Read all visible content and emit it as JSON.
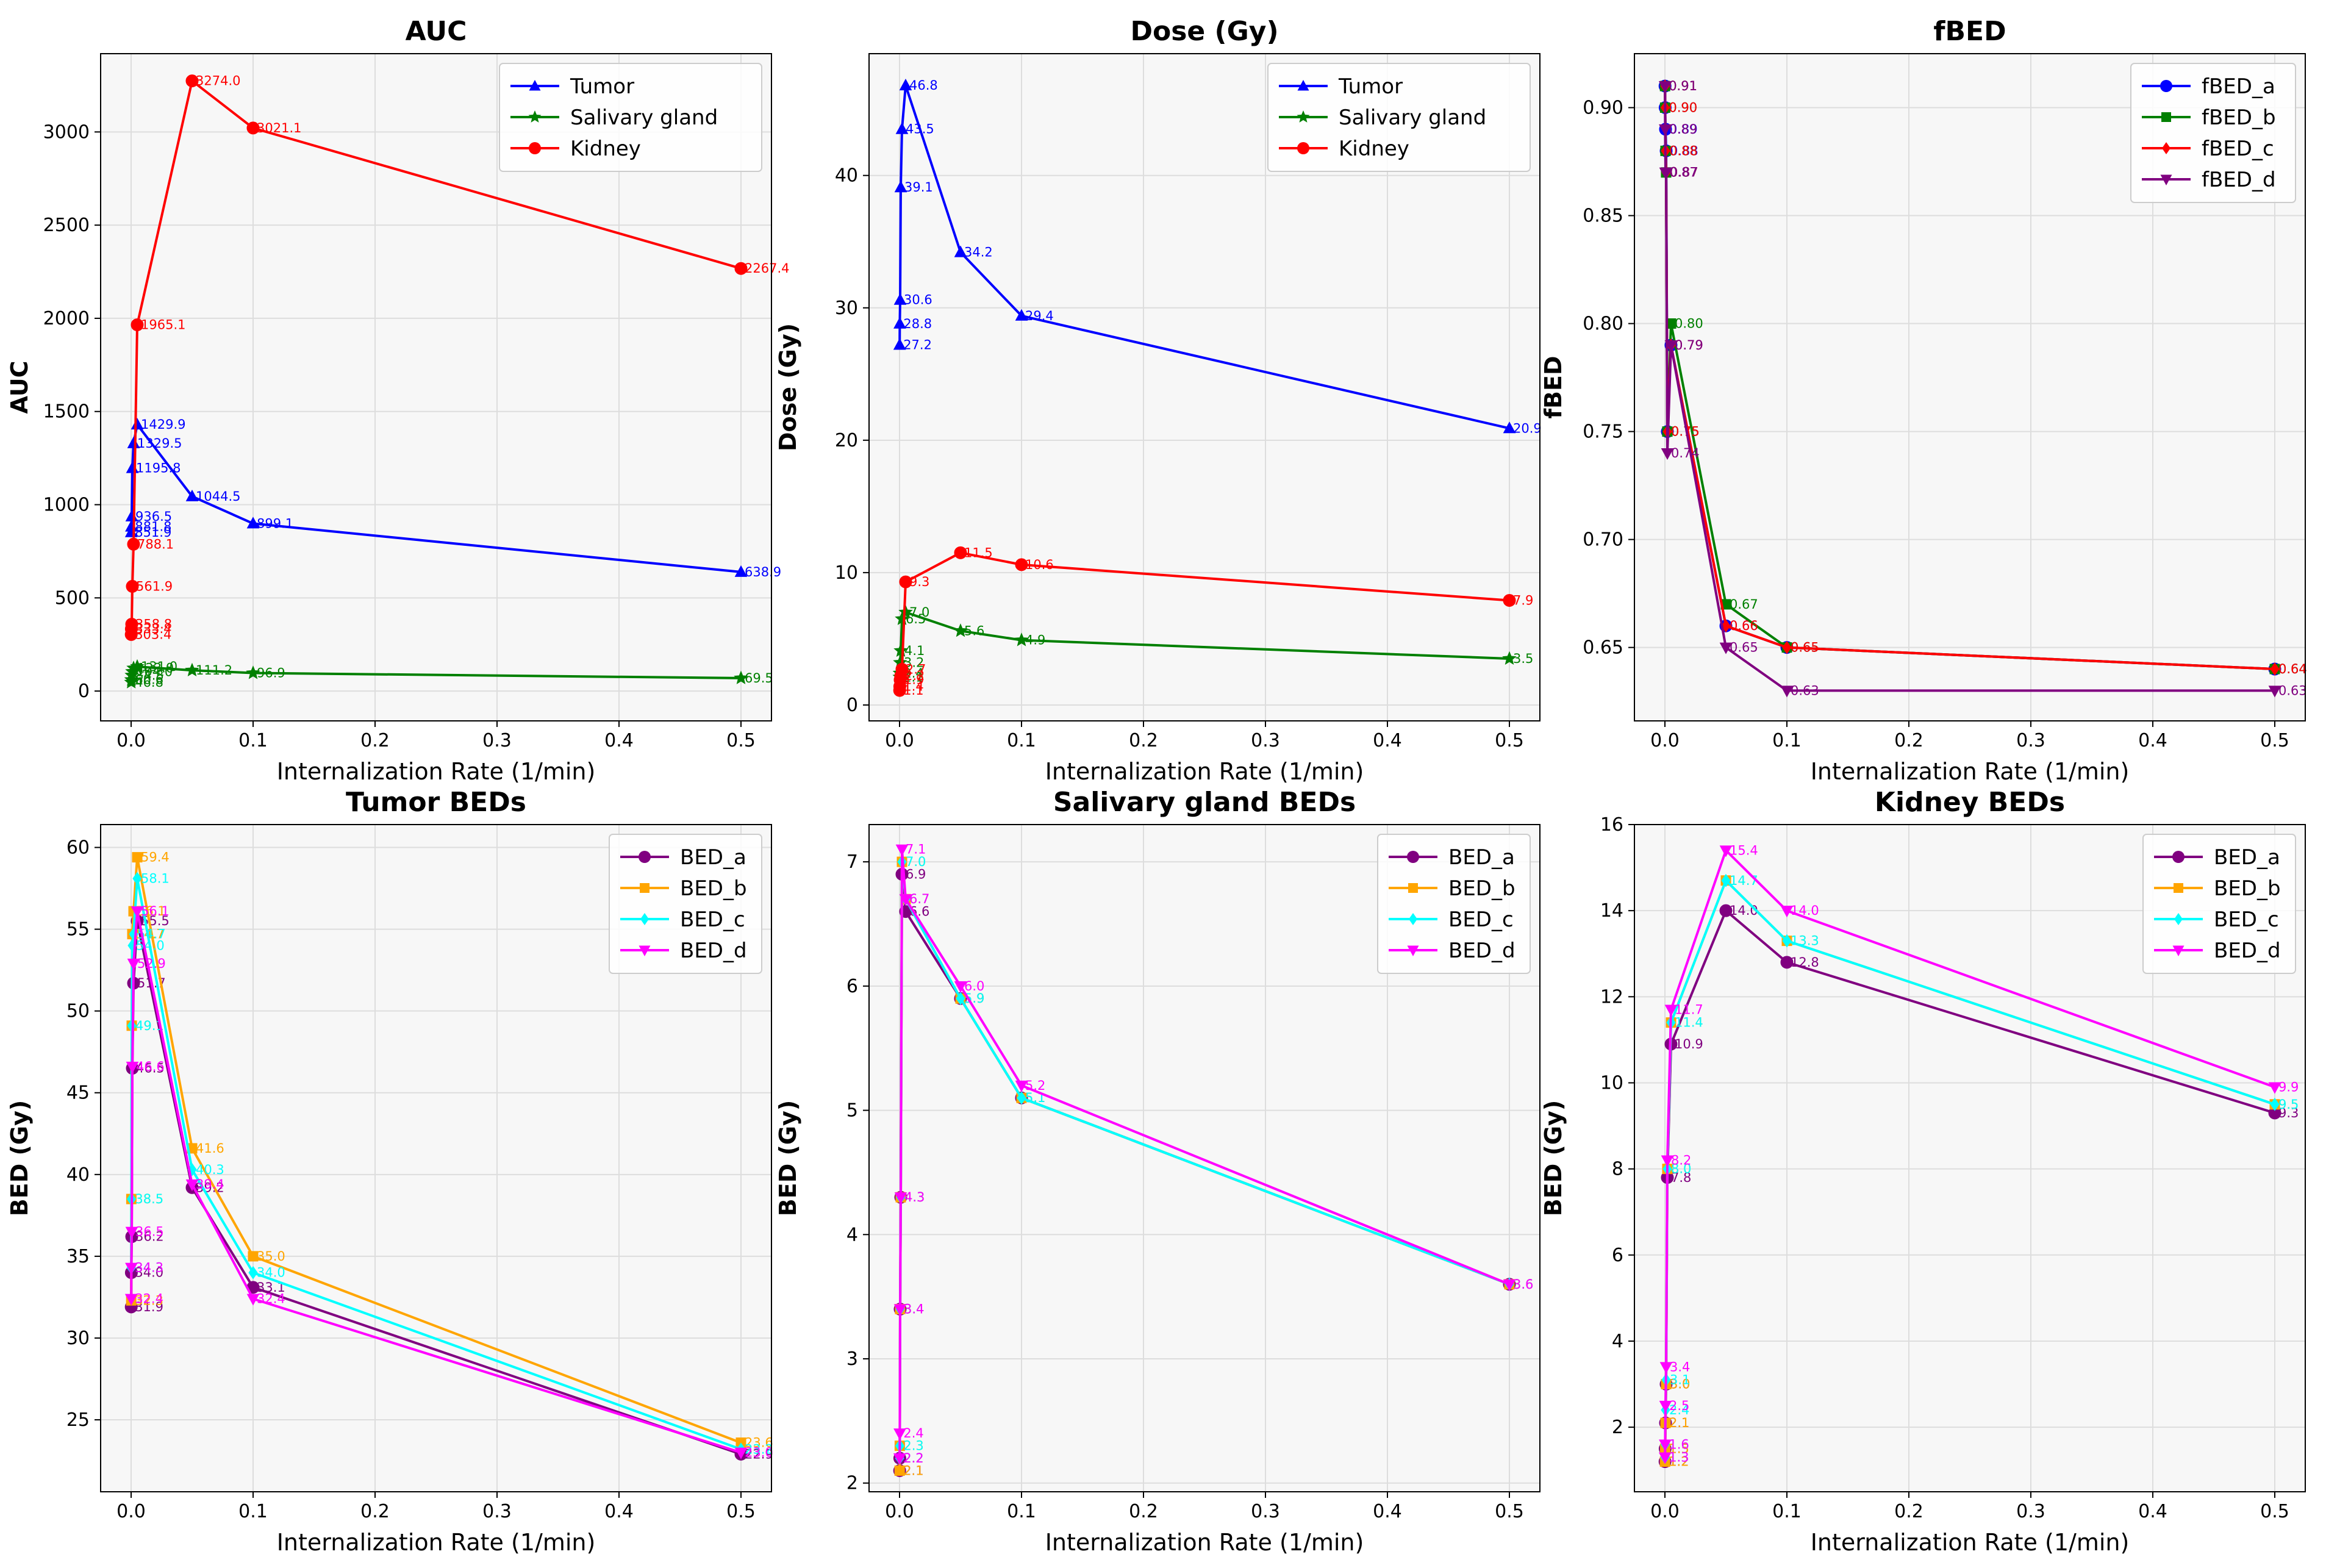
{
  "chart_data": [
    {
      "type": "line",
      "title": "AUC",
      "xlabel": "Internalization Rate (1/min)",
      "ylabel": "AUC",
      "xlim": [
        -0.025,
        0.525
      ],
      "ylim": [
        -160,
        3420
      ],
      "xticks": [
        0.0,
        0.1,
        0.2,
        0.3,
        0.4,
        0.5
      ],
      "xtick_labels": [
        "0.0",
        "0.1",
        "0.2",
        "0.3",
        "0.4",
        "0.5"
      ],
      "yticks": [
        0,
        500,
        1000,
        1500,
        2000,
        2500,
        3000
      ],
      "ytick_labels": [
        "0",
        "500",
        "1000",
        "1500",
        "2000",
        "2500",
        "3000"
      ],
      "grid": true,
      "legend_position": "top-right",
      "x": [
        0.0001,
        0.0002,
        0.0005,
        0.001,
        0.002,
        0.005,
        0.05,
        0.1,
        0.5
      ],
      "series": [
        {
          "name": "Tumor",
          "color": "#0000ff",
          "marker": "triangle-up",
          "values": [
            851.9,
            881.8,
            936.5,
            1195.8,
            1329.5,
            1429.9,
            1044.5,
            899.1,
            638.9
          ],
          "labels": [
            "851.9",
            "881.8",
            "936.5",
            "1195.8",
            "1329.5",
            "1429.9",
            "1044.5",
            "899.1",
            "638.9"
          ]
        },
        {
          "name": "Salivary gland",
          "color": "#008000",
          "marker": "star",
          "values": [
            46.8,
            60.6,
            84.3,
            104.0,
            123.0,
            131.0,
            111.2,
            96.9,
            69.5
          ],
          "labels": [
            "46.8",
            "60.6",
            "84.3",
            "104.0",
            "123.0",
            "131.0",
            "111.2",
            "96.9",
            "69.5"
          ]
        },
        {
          "name": "Kidney",
          "color": "#ff0000",
          "marker": "circle",
          "values": [
            303.4,
            333.4,
            358.8,
            561.9,
            788.1,
            1965.1,
            3274.0,
            3021.1,
            2267.4
          ],
          "labels": [
            "303.4",
            "333.4",
            "358.8",
            "561.9",
            "788.1",
            "1965.1",
            "3274.0",
            "3021.1",
            "2267.4"
          ]
        }
      ]
    },
    {
      "type": "line",
      "title": "Dose (Gy)",
      "xlabel": "Internalization Rate (1/min)",
      "ylabel": "Dose (Gy)",
      "xlim": [
        -0.025,
        0.525
      ],
      "ylim": [
        -1.2,
        49.2
      ],
      "xticks": [
        0.0,
        0.1,
        0.2,
        0.3,
        0.4,
        0.5
      ],
      "xtick_labels": [
        "0.0",
        "0.1",
        "0.2",
        "0.3",
        "0.4",
        "0.5"
      ],
      "yticks": [
        0,
        10,
        20,
        30,
        40
      ],
      "ytick_labels": [
        "0",
        "10",
        "20",
        "30",
        "40"
      ],
      "grid": true,
      "legend_position": "top-right",
      "x": [
        0.0001,
        0.0002,
        0.0005,
        0.001,
        0.002,
        0.005,
        0.05,
        0.1,
        0.5
      ],
      "series": [
        {
          "name": "Tumor",
          "color": "#0000ff",
          "marker": "triangle-up",
          "values": [
            27.2,
            28.8,
            30.6,
            39.1,
            43.5,
            46.8,
            34.2,
            29.4,
            20.9
          ],
          "labels": [
            "27.2",
            "28.8",
            "30.6",
            "39.1",
            "43.5",
            "46.8",
            "34.2",
            "29.4",
            "20.9"
          ]
        },
        {
          "name": "Salivary gland",
          "color": "#008000",
          "marker": "star",
          "values": [
            2.1,
            2.4,
            3.2,
            4.1,
            6.5,
            7.0,
            5.6,
            4.9,
            3.5
          ],
          "labels": [
            "2.1",
            "2.4",
            "3.2",
            "4.1",
            "6.5",
            "7.0",
            "5.6",
            "4.9",
            "3.5"
          ]
        },
        {
          "name": "Kidney",
          "color": "#ff0000",
          "marker": "circle",
          "values": [
            1.1,
            1.4,
            1.9,
            2.2,
            2.7,
            9.3,
            11.5,
            10.6,
            7.9
          ],
          "labels": [
            "1.1",
            "1.4",
            "1.9",
            "2.2",
            "2.7",
            "9.3",
            "11.5",
            "10.6",
            "7.9"
          ]
        }
      ]
    },
    {
      "type": "line",
      "title": "fBED",
      "xlabel": "Internalization Rate (1/min)",
      "ylabel": "fBED",
      "xlim": [
        -0.025,
        0.525
      ],
      "ylim": [
        0.616,
        0.925
      ],
      "xticks": [
        0.0,
        0.1,
        0.2,
        0.3,
        0.4,
        0.5
      ],
      "xtick_labels": [
        "0.0",
        "0.1",
        "0.2",
        "0.3",
        "0.4",
        "0.5"
      ],
      "yticks": [
        0.65,
        0.7,
        0.75,
        0.8,
        0.85,
        0.9
      ],
      "ytick_labels": [
        "0.65",
        "0.70",
        "0.75",
        "0.80",
        "0.85",
        "0.90"
      ],
      "grid": true,
      "legend_position": "top-right",
      "x": [
        0.0001,
        0.0002,
        0.0005,
        0.001,
        0.002,
        0.005,
        0.05,
        0.1,
        0.5
      ],
      "series": [
        {
          "name": "fBED_a",
          "color": "#0000ff",
          "marker": "circle",
          "values": [
            0.91,
            0.9,
            0.89,
            0.88,
            0.75,
            0.79,
            0.66,
            0.65,
            0.64
          ],
          "labels": [
            "0.91",
            "0.90",
            "0.89",
            "0.88",
            "0.75",
            "0.79",
            "0.66",
            "0.65",
            "0.64"
          ]
        },
        {
          "name": "fBED_b",
          "color": "#008000",
          "marker": "square",
          "values": [
            0.91,
            0.9,
            0.88,
            0.87,
            0.75,
            0.8,
            0.67,
            0.65,
            0.64
          ],
          "labels": [
            "0.91",
            "0.90",
            "0.88",
            "0.87",
            "0.75",
            "0.80",
            "0.67",
            "0.65",
            "0.64"
          ]
        },
        {
          "name": "fBED_c",
          "color": "#ff0000",
          "marker": "diamond",
          "values": [
            0.91,
            0.9,
            0.88,
            0.87,
            0.75,
            0.79,
            0.66,
            0.65,
            0.64
          ],
          "labels": [
            "0.91",
            "0.90",
            "0.88",
            "0.87",
            "0.75",
            "0.79",
            "0.66",
            "0.65",
            "0.64"
          ]
        },
        {
          "name": "fBED_d",
          "color": "#800080",
          "marker": "triangle-down",
          "values": [
            0.91,
            0.89,
            0.87,
            0.87,
            0.74,
            0.79,
            0.65,
            0.63,
            0.63
          ],
          "labels": [
            "0.91",
            "0.89",
            "0.87",
            "0.87",
            "0.74",
            "0.79",
            "0.65",
            "0.63",
            "0.63"
          ]
        }
      ]
    },
    {
      "type": "line",
      "title": "Tumor BEDs",
      "xlabel": "Internalization Rate (1/min)",
      "ylabel": "BED (Gy)",
      "xlim": [
        -0.025,
        0.525
      ],
      "ylim": [
        20.6,
        61.4
      ],
      "xticks": [
        0.0,
        0.1,
        0.2,
        0.3,
        0.4,
        0.5
      ],
      "xtick_labels": [
        "0.0",
        "0.1",
        "0.2",
        "0.3",
        "0.4",
        "0.5"
      ],
      "yticks": [
        25,
        30,
        35,
        40,
        45,
        50,
        55,
        60
      ],
      "ytick_labels": [
        "25",
        "30",
        "35",
        "40",
        "45",
        "50",
        "55",
        "60"
      ],
      "grid": true,
      "legend_position": "top-right",
      "x": [
        0.0001,
        0.0002,
        0.0005,
        0.001,
        0.002,
        0.005,
        0.05,
        0.1,
        0.5
      ],
      "series": [
        {
          "name": "BED_a",
          "color": "#800080",
          "marker": "circle",
          "values": [
            31.9,
            34.0,
            36.2,
            46.5,
            51.7,
            55.5,
            39.2,
            33.1,
            22.9
          ],
          "labels": [
            "31.9",
            "34.0",
            "36.2",
            "46.5",
            "51.7",
            "55.5",
            "39.2",
            "33.1",
            "22.9"
          ]
        },
        {
          "name": "BED_b",
          "color": "#ffa500",
          "marker": "square",
          "values": [
            32.3,
            38.5,
            49.1,
            54.7,
            56.1,
            59.4,
            41.6,
            35.0,
            23.6
          ],
          "labels": [
            "32.3",
            "38.5",
            "49.1",
            "54.7",
            "56.1",
            "59.4",
            "41.6",
            "35.0",
            "23.6"
          ]
        },
        {
          "name": "BED_c",
          "color": "#00ffff",
          "marker": "diamond",
          "values": [
            34.3,
            38.5,
            49.1,
            54.0,
            54.7,
            58.1,
            40.3,
            34.0,
            23.2
          ],
          "labels": [
            "34.3",
            "38.5",
            "49.1",
            "54.0",
            "54.7",
            "58.1",
            "40.3",
            "34.0",
            "23.2"
          ]
        },
        {
          "name": "BED_d",
          "color": "#ff00ff",
          "marker": "triangle-down",
          "values": [
            32.4,
            34.3,
            36.5,
            46.6,
            52.9,
            56.1,
            39.4,
            32.4,
            23.0
          ],
          "labels": [
            "32.4",
            "34.3",
            "36.5",
            "46.6",
            "52.9",
            "56.1",
            "39.4",
            "32.4",
            "23.0"
          ]
        }
      ]
    },
    {
      "type": "line",
      "title": "Salivary gland BEDs",
      "xlabel": "Internalization Rate (1/min)",
      "ylabel": "BED (Gy)",
      "xlim": [
        -0.025,
        0.525
      ],
      "ylim": [
        1.93,
        7.3
      ],
      "xticks": [
        0.0,
        0.1,
        0.2,
        0.3,
        0.4,
        0.5
      ],
      "xtick_labels": [
        "0.0",
        "0.1",
        "0.2",
        "0.3",
        "0.4",
        "0.5"
      ],
      "yticks": [
        2,
        3,
        4,
        5,
        6,
        7
      ],
      "ytick_labels": [
        "2",
        "3",
        "4",
        "5",
        "6",
        "7"
      ],
      "grid": true,
      "legend_position": "top-right",
      "x": [
        0.0001,
        0.0002,
        0.0005,
        0.001,
        0.002,
        0.005,
        0.05,
        0.1,
        0.5
      ],
      "series": [
        {
          "name": "BED_a",
          "color": "#800080",
          "marker": "circle",
          "values": [
            2.1,
            2.2,
            3.4,
            4.3,
            6.9,
            6.6,
            5.9,
            5.1,
            3.6
          ],
          "labels": [
            "2.1",
            "2.2",
            "3.4",
            "4.3",
            "6.9",
            "6.6",
            "5.9",
            "5.1",
            "3.6"
          ]
        },
        {
          "name": "BED_b",
          "color": "#ffa500",
          "marker": "square",
          "values": [
            2.1,
            2.3,
            3.4,
            4.3,
            7.0,
            6.7,
            5.9,
            5.1,
            3.6
          ],
          "labels": [
            "2.1",
            "2.3",
            "3.4",
            "4.3",
            "7.0",
            "6.7",
            "5.9",
            "5.1",
            "3.6"
          ]
        },
        {
          "name": "BED_c",
          "color": "#00ffff",
          "marker": "diamond",
          "values": [
            2.2,
            2.3,
            3.4,
            4.3,
            7.0,
            6.7,
            5.9,
            5.1,
            3.6
          ],
          "labels": [
            "2.2",
            "2.3",
            "3.4",
            "4.3",
            "7.0",
            "6.7",
            "5.9",
            "5.1",
            "3.6"
          ]
        },
        {
          "name": "BED_d",
          "color": "#ff00ff",
          "marker": "triangle-down",
          "values": [
            2.2,
            2.4,
            3.4,
            4.3,
            7.1,
            6.7,
            6.0,
            5.2,
            3.6
          ],
          "labels": [
            "2.2",
            "2.4",
            "3.4",
            "4.3",
            "7.1",
            "6.7",
            "6.0",
            "5.2",
            "3.6"
          ]
        }
      ]
    },
    {
      "type": "line",
      "title": "Kidney BEDs",
      "xlabel": "Internalization Rate (1/min)",
      "ylabel": "BED (Gy)",
      "xlim": [
        -0.025,
        0.525
      ],
      "ylim": [
        0.5,
        16.0
      ],
      "xticks": [
        0.0,
        0.1,
        0.2,
        0.3,
        0.4,
        0.5
      ],
      "xtick_labels": [
        "0.0",
        "0.1",
        "0.2",
        "0.3",
        "0.4",
        "0.5"
      ],
      "yticks": [
        2,
        4,
        6,
        8,
        10,
        12,
        14,
        16
      ],
      "ytick_labels": [
        "2",
        "4",
        "6",
        "8",
        "10",
        "12",
        "14",
        "16"
      ],
      "grid": true,
      "legend_position": "top-right",
      "x": [
        0.0001,
        0.0002,
        0.0005,
        0.001,
        0.002,
        0.005,
        0.05,
        0.1,
        0.5
      ],
      "series": [
        {
          "name": "BED_a",
          "color": "#800080",
          "marker": "circle",
          "values": [
            1.2,
            1.5,
            2.1,
            3.0,
            7.8,
            10.9,
            14.0,
            12.8,
            9.3
          ],
          "labels": [
            "1.2",
            "1.5",
            "2.1",
            "3.0",
            "7.8",
            "10.9",
            "14.0",
            "12.8",
            "9.3"
          ]
        },
        {
          "name": "BED_b",
          "color": "#ffa500",
          "marker": "square",
          "values": [
            1.2,
            1.5,
            2.1,
            3.0,
            8.0,
            11.4,
            14.7,
            13.3,
            9.5
          ],
          "labels": [
            "1.2",
            "1.5",
            "2.1",
            "3.0",
            "8.0",
            "11.4",
            "14.7",
            "13.3",
            "9.5"
          ]
        },
        {
          "name": "BED_c",
          "color": "#00ffff",
          "marker": "diamond",
          "values": [
            1.3,
            1.6,
            2.4,
            3.1,
            8.0,
            11.4,
            14.7,
            13.3,
            9.5
          ],
          "labels": [
            "1.3",
            "1.6",
            "2.4",
            "3.1",
            "8.0",
            "11.4",
            "14.7",
            "13.3",
            "9.5"
          ]
        },
        {
          "name": "BED_d",
          "color": "#ff00ff",
          "marker": "triangle-down",
          "values": [
            1.3,
            1.6,
            2.5,
            3.4,
            8.2,
            11.7,
            15.4,
            14.0,
            9.9
          ],
          "labels": [
            "1.3",
            "1.6",
            "2.5",
            "3.4",
            "8.2",
            "11.7",
            "15.4",
            "14.0",
            "9.9"
          ]
        }
      ]
    }
  ]
}
